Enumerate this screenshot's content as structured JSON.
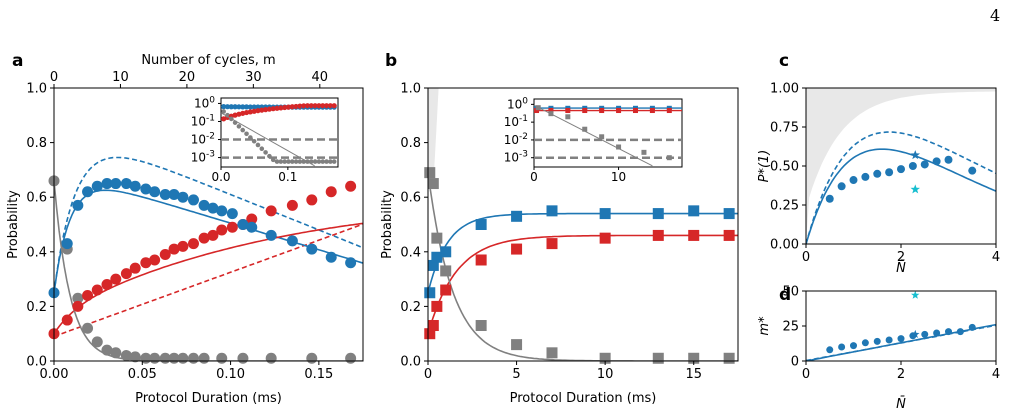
{
  "page_number": "4",
  "chart_data": [
    {
      "panel": "a",
      "type": "scatter",
      "xlabel": "Protocol Duration (ms)",
      "ylabel": "Probability",
      "top_xlabel": "Number of cycles, m",
      "xlim": [
        0,
        0.175
      ],
      "ylim": [
        0,
        1.0
      ],
      "x_ticks": [
        0.0,
        0.05,
        0.1,
        0.15
      ],
      "x_tick_labels": [
        "0.00",
        "0.05",
        "0.10",
        "0.15"
      ],
      "y_ticks": [
        0,
        0.2,
        0.4,
        0.6,
        0.8,
        1.0
      ],
      "y_tick_labels": [
        "0.0",
        "0.2",
        "0.4",
        "0.6",
        "0.8",
        "1.0"
      ],
      "top_ticks": [
        0,
        10,
        20,
        30,
        40
      ],
      "top_tick_labels": [
        "0",
        "10",
        "20",
        "30",
        "40"
      ],
      "top_xlim": [
        0,
        46.5
      ],
      "series": [
        {
          "color": "#1f77b4",
          "marker": "circle",
          "x": [
            0.0,
            0.0075,
            0.0135,
            0.019,
            0.0245,
            0.03,
            0.035,
            0.041,
            0.046,
            0.052,
            0.057,
            0.063,
            0.068,
            0.073,
            0.079,
            0.085,
            0.09,
            0.095,
            0.101,
            0.107,
            0.112,
            0.123,
            0.135,
            0.146,
            0.157,
            0.168
          ],
          "y": [
            0.25,
            0.43,
            0.57,
            0.62,
            0.64,
            0.65,
            0.65,
            0.65,
            0.64,
            0.63,
            0.62,
            0.61,
            0.61,
            0.6,
            0.59,
            0.57,
            0.56,
            0.55,
            0.54,
            0.5,
            0.49,
            0.46,
            0.44,
            0.41,
            0.38,
            0.36
          ]
        },
        {
          "color": "#d62728",
          "marker": "circle",
          "x": [
            0.0,
            0.0075,
            0.0135,
            0.019,
            0.0245,
            0.03,
            0.035,
            0.041,
            0.046,
            0.052,
            0.057,
            0.063,
            0.068,
            0.073,
            0.079,
            0.085,
            0.09,
            0.095,
            0.101,
            0.107,
            0.112,
            0.123,
            0.135,
            0.146,
            0.157,
            0.168
          ],
          "y": [
            0.1,
            0.15,
            0.2,
            0.24,
            0.26,
            0.28,
            0.3,
            0.32,
            0.34,
            0.36,
            0.37,
            0.39,
            0.41,
            0.42,
            0.43,
            0.45,
            0.46,
            0.48,
            0.49,
            0.5,
            0.52,
            0.55,
            0.57,
            0.59,
            0.62,
            0.64
          ]
        },
        {
          "color": "#808080",
          "marker": "circle",
          "x": [
            0.0,
            0.0075,
            0.0135,
            0.019,
            0.0245,
            0.03,
            0.035,
            0.041,
            0.046,
            0.052,
            0.057,
            0.063,
            0.068,
            0.073,
            0.079,
            0.085,
            0.095,
            0.107,
            0.123,
            0.146,
            0.168
          ],
          "y": [
            0.66,
            0.41,
            0.23,
            0.12,
            0.07,
            0.04,
            0.03,
            0.02,
            0.015,
            0.01,
            0.01,
            0.01,
            0.01,
            0.01,
            0.01,
            0.01,
            0.01,
            0.01,
            0.01,
            0.01,
            0.01
          ]
        }
      ],
      "inset": {
        "xlim": [
          0,
          0.175
        ],
        "x_ticks": [
          0.0,
          0.1
        ],
        "x_tick_labels": [
          "0.0",
          "0.1"
        ],
        "y_scale": "log",
        "ylim": [
          0.0003,
          2
        ],
        "y_ticks": [
          1,
          0.1,
          0.01,
          0.001
        ],
        "dashed_levels": [
          0.01,
          0.001
        ]
      }
    },
    {
      "panel": "b",
      "type": "scatter",
      "xlabel": "Protocol Duration (ms)",
      "ylabel": "Probability",
      "xlim": [
        0,
        17.5
      ],
      "ylim": [
        0,
        1.0
      ],
      "x_ticks": [
        0,
        5,
        10,
        15
      ],
      "x_tick_labels": [
        "0",
        "5",
        "10",
        "15"
      ],
      "y_ticks": [
        0,
        0.2,
        0.4,
        0.6,
        0.8,
        1.0
      ],
      "y_tick_labels": [
        "0.0",
        "0.2",
        "0.4",
        "0.6",
        "0.8",
        "1.0"
      ],
      "series": [
        {
          "color": "#1f77b4",
          "marker": "square",
          "x": [
            0.1,
            0.3,
            0.5,
            1,
            3,
            5,
            7,
            10,
            13,
            15,
            17
          ],
          "y": [
            0.25,
            0.35,
            0.38,
            0.4,
            0.5,
            0.53,
            0.55,
            0.54,
            0.54,
            0.55,
            0.54
          ]
        },
        {
          "color": "#d62728",
          "marker": "square",
          "x": [
            0.1,
            0.3,
            0.5,
            1,
            3,
            5,
            7,
            10,
            13,
            15,
            17
          ],
          "y": [
            0.1,
            0.13,
            0.2,
            0.26,
            0.37,
            0.41,
            0.43,
            0.45,
            0.46,
            0.46,
            0.46
          ]
        },
        {
          "color": "#808080",
          "marker": "square",
          "x": [
            0.1,
            0.3,
            0.5,
            1,
            3,
            5,
            7,
            10,
            13,
            15,
            17
          ],
          "y": [
            0.69,
            0.65,
            0.45,
            0.33,
            0.13,
            0.06,
            0.03,
            0.01,
            0.01,
            0.01,
            0.01
          ]
        }
      ],
      "inset": {
        "xlim": [
          0,
          17.5
        ],
        "x_ticks": [
          0,
          10
        ],
        "x_tick_labels": [
          "0",
          "10"
        ],
        "y_scale": "log",
        "ylim": [
          0.0003,
          2
        ],
        "y_ticks": [
          1,
          0.1,
          0.01,
          0.001
        ],
        "dashed_levels": [
          0.01,
          0.001
        ]
      }
    },
    {
      "panel": "c",
      "type": "scatter",
      "xlabel": "N̄",
      "ylabel": "P*(1)",
      "xlim": [
        0,
        4
      ],
      "ylim": [
        0,
        1.0
      ],
      "x_ticks": [
        0,
        2,
        4
      ],
      "x_tick_labels": [
        "0",
        "2",
        "4"
      ],
      "y_ticks": [
        0,
        0.25,
        0.5,
        0.75,
        1.0
      ],
      "y_tick_labels": [
        "0.00",
        "0.25",
        "0.50",
        "0.75",
        "1.00"
      ],
      "points": {
        "x": [
          0.5,
          0.75,
          1.0,
          1.25,
          1.5,
          1.75,
          2.0,
          2.25,
          2.5,
          2.75,
          3.0,
          3.5
        ],
        "y": [
          0.29,
          0.37,
          0.41,
          0.43,
          0.45,
          0.46,
          0.48,
          0.5,
          0.51,
          0.53,
          0.54,
          0.47
        ]
      },
      "stars": [
        {
          "x": 2.3,
          "y": 0.57,
          "color": "#1f77b4"
        },
        {
          "x": 2.3,
          "y": 0.35,
          "color": "#17becf"
        }
      ]
    },
    {
      "panel": "d",
      "type": "scatter",
      "xlabel": "N̄",
      "ylabel": "m*",
      "xlim": [
        0,
        4
      ],
      "ylim": [
        0,
        50
      ],
      "x_ticks": [
        0,
        2,
        4
      ],
      "x_tick_labels": [
        "0",
        "2",
        "4"
      ],
      "y_ticks": [
        0,
        25,
        50
      ],
      "y_tick_labels": [
        "0",
        "25",
        "50"
      ],
      "points": {
        "x": [
          0.5,
          0.75,
          1.0,
          1.25,
          1.5,
          1.75,
          2.0,
          2.25,
          2.5,
          2.75,
          3.0,
          3.25,
          3.5
        ],
        "y": [
          8,
          10,
          11,
          13,
          14,
          15,
          16,
          18,
          19,
          20,
          21,
          21,
          24
        ]
      },
      "stars": [
        {
          "x": 2.3,
          "y": 19,
          "color": "#1f77b4"
        },
        {
          "x": 2.3,
          "y": 47,
          "color": "#17becf"
        }
      ]
    }
  ],
  "panel_labels": [
    "a",
    "b",
    "c",
    "d"
  ],
  "colors": {
    "blue": "#1f77b4",
    "red": "#d62728",
    "gray": "#808080",
    "cyan": "#17becf",
    "shade": "#e8e8e8"
  }
}
